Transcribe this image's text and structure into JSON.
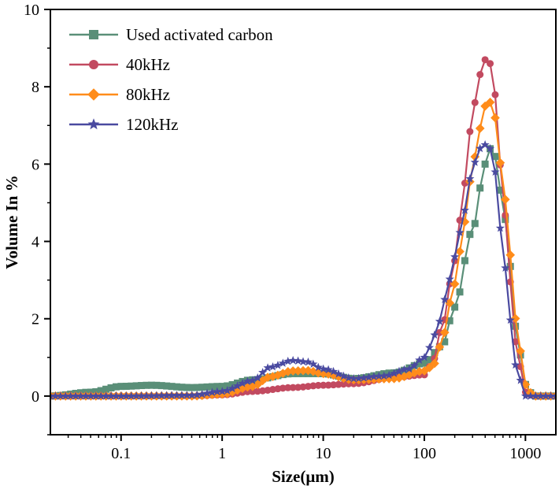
{
  "chart_data": {
    "type": "line",
    "title": "",
    "xlabel": "Size(μm)",
    "ylabel": "Volume In %",
    "xscale": "log",
    "xlim": [
      0.02,
      2000
    ],
    "ylim": [
      -1,
      10
    ],
    "xticks": [
      {
        "value": 0.1,
        "label": "0.1"
      },
      {
        "value": 1,
        "label": "1"
      },
      {
        "value": 10,
        "label": "10"
      },
      {
        "value": 100,
        "label": "100"
      },
      {
        "value": 1000,
        "label": "1000"
      }
    ],
    "yticks": [
      {
        "value": 0,
        "label": "0"
      },
      {
        "value": 2,
        "label": "2"
      },
      {
        "value": 4,
        "label": "4"
      },
      {
        "value": 6,
        "label": "6"
      },
      {
        "value": 8,
        "label": "8"
      },
      {
        "value": 10,
        "label": "10"
      }
    ],
    "legend_position": "top-left",
    "series": [
      {
        "name": "Used activated carbon",
        "color": "#5a8f78",
        "marker": "square",
        "x": [
          0.02,
          0.05,
          0.1,
          0.2,
          0.5,
          1,
          2,
          5,
          10,
          20,
          50,
          100,
          150,
          200,
          300,
          400,
          450,
          500,
          600,
          700,
          800,
          1000,
          1200,
          2000
        ],
        "y": [
          0.0,
          0.1,
          0.25,
          0.28,
          0.22,
          0.25,
          0.42,
          0.58,
          0.58,
          0.45,
          0.6,
          0.85,
          1.3,
          2.3,
          4.3,
          6.0,
          6.4,
          6.2,
          5.0,
          3.4,
          1.8,
          0.3,
          0.0,
          0.0
        ]
      },
      {
        "name": "40kHz",
        "color": "#c24a60",
        "marker": "circle",
        "x": [
          0.02,
          0.1,
          0.5,
          1,
          2,
          5,
          10,
          20,
          50,
          100,
          120,
          150,
          200,
          250,
          300,
          350,
          400,
          450,
          500,
          600,
          700,
          800,
          1000,
          1200,
          2000
        ],
        "y": [
          0.0,
          0.0,
          0.0,
          0.03,
          0.12,
          0.22,
          0.28,
          0.32,
          0.48,
          0.55,
          0.85,
          1.8,
          3.5,
          5.5,
          7.3,
          8.3,
          8.7,
          8.6,
          7.8,
          5.3,
          3.0,
          1.4,
          0.1,
          0.0,
          0.0
        ]
      },
      {
        "name": "80kHz",
        "color": "#ff8c1a",
        "marker": "diamond",
        "x": [
          0.02,
          0.1,
          0.5,
          1,
          2,
          3,
          5,
          7,
          10,
          20,
          50,
          100,
          130,
          150,
          200,
          250,
          300,
          350,
          400,
          450,
          500,
          600,
          700,
          800,
          1000,
          1200,
          2000
        ],
        "y": [
          0.0,
          0.0,
          0.0,
          0.05,
          0.25,
          0.5,
          0.65,
          0.66,
          0.58,
          0.42,
          0.45,
          0.65,
          0.85,
          1.5,
          2.9,
          4.5,
          5.9,
          6.9,
          7.5,
          7.6,
          7.2,
          5.6,
          3.7,
          2.0,
          0.3,
          0.0,
          0.0
        ]
      },
      {
        "name": "120kHz",
        "color": "#4a4aa0",
        "marker": "star",
        "x": [
          0.02,
          0.1,
          0.5,
          1,
          2,
          3,
          5,
          7,
          10,
          20,
          40,
          70,
          100,
          130,
          160,
          200,
          250,
          300,
          350,
          400,
          450,
          500,
          600,
          700,
          800,
          1000,
          1200,
          2000
        ],
        "y": [
          0.0,
          0.0,
          0.02,
          0.12,
          0.4,
          0.75,
          0.92,
          0.88,
          0.7,
          0.45,
          0.52,
          0.7,
          1.0,
          1.6,
          2.5,
          3.6,
          4.8,
          5.9,
          6.4,
          6.5,
          6.4,
          5.8,
          3.8,
          2.0,
          0.8,
          0.0,
          0.0,
          0.0
        ]
      }
    ]
  }
}
